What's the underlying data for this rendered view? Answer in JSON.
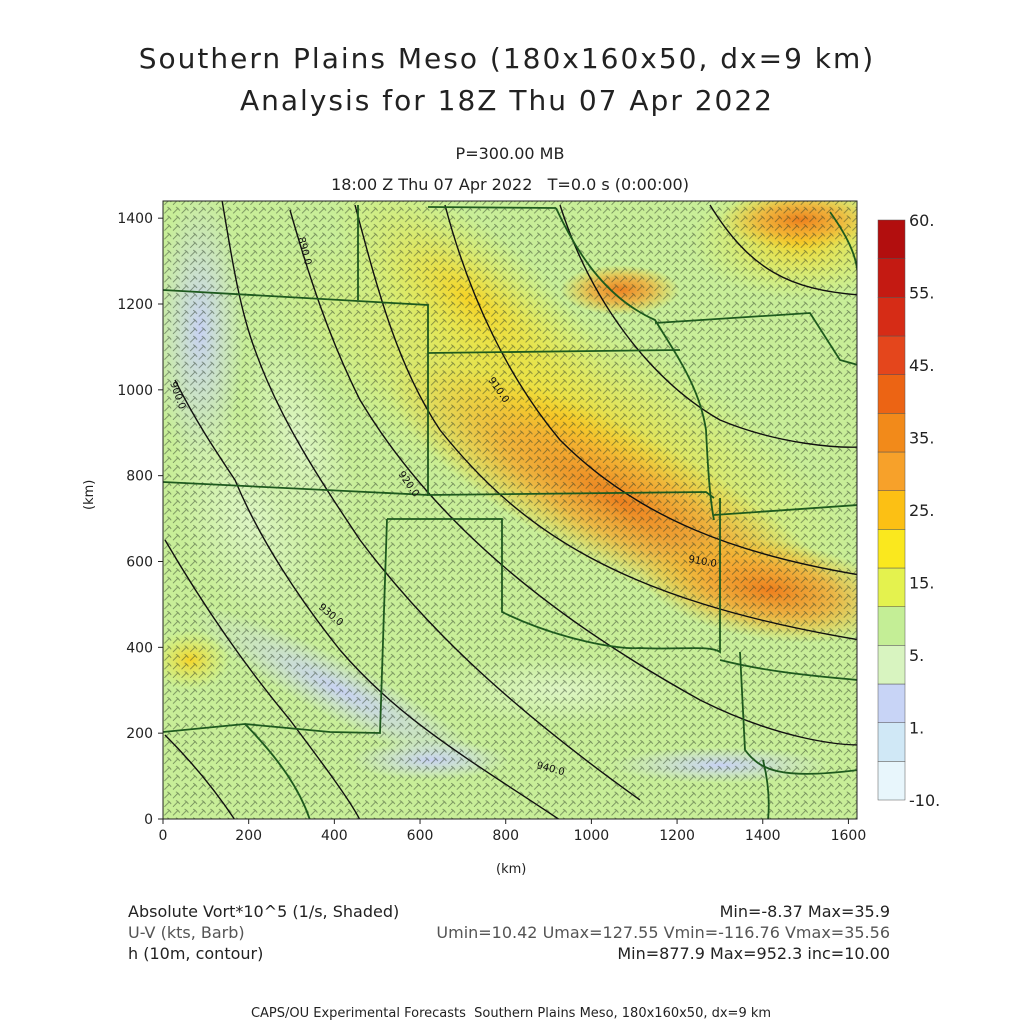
{
  "title_line1": "Southern Plains Meso (180x160x50, dx=9 km)",
  "title_line2": "Analysis for 18Z Thu 07 Apr 2022",
  "level_label": "P=300.00 MB",
  "time_label": "18:00 Z Thu 07 Apr 2022   T=0.0 s (0:00:00)",
  "x_axis": {
    "label": "(km)",
    "ticks": [
      0,
      200,
      400,
      600,
      800,
      1000,
      1200,
      1400,
      1600
    ],
    "range": [
      0,
      1620
    ]
  },
  "y_axis": {
    "label": "(km)",
    "ticks": [
      0,
      200,
      400,
      600,
      800,
      1000,
      1200,
      1400
    ],
    "range": [
      0,
      1440
    ]
  },
  "colorbar": {
    "labels": [
      "60.",
      "55.",
      "45.",
      "35.",
      "25.",
      "15.",
      "5.",
      "1.",
      "-10."
    ],
    "colors": [
      "#e8f6fc",
      "#d0e8f6",
      "#c8d4f6",
      "#d8f4c0",
      "#c4ee96",
      "#e4f24e",
      "#fae81e",
      "#fcc014",
      "#f7a12a",
      "#f28a1a",
      "#ec6414",
      "#e4461c",
      "#d62c16",
      "#c41a12",
      "#b20e0e"
    ]
  },
  "contour_labels": [
    "890.0",
    "900.0",
    "910.0",
    "920.0",
    "930.0",
    "940.0"
  ],
  "footer": {
    "var1": "Absolute Vort*10^5 (1/s, Shaded)",
    "var1_stats": "Min=-8.37 Max=35.9",
    "var2": "U-V (kts, Barb)",
    "var2_stats": "Umin=10.42 Umax=127.55 Vmin=-116.76 Vmax=35.56",
    "var3": "h (10m, contour)",
    "var3_stats": "Min=877.9 Max=952.3 inc=10.00"
  },
  "credit": "CAPS/OU Experimental Forecasts  Southern Plains Meso, 180x160x50, dx=9 km"
}
